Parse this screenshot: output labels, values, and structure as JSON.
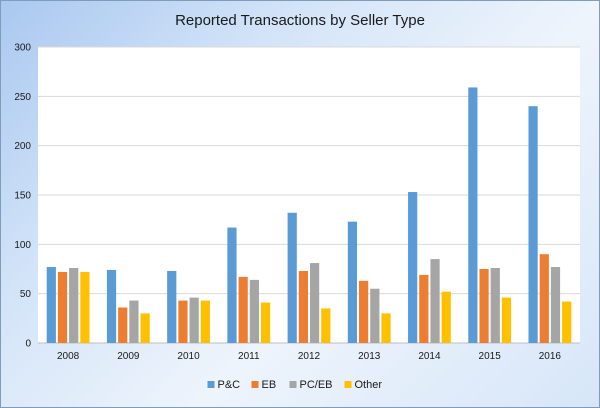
{
  "chart_data": {
    "type": "bar",
    "title": "Reported Transactions by Seller Type",
    "xlabel": "",
    "ylabel": "",
    "ylim": [
      0,
      300
    ],
    "yticks": [
      0,
      50,
      100,
      150,
      200,
      250,
      300
    ],
    "grid": true,
    "legend_position": "bottom",
    "categories": [
      "2008",
      "2009",
      "2010",
      "2011",
      "2012",
      "2013",
      "2014",
      "2015",
      "2016"
    ],
    "series": [
      {
        "name": "P&C",
        "color": "#5b9bd5",
        "values": [
          77,
          74,
          73,
          117,
          132,
          123,
          153,
          259,
          240
        ]
      },
      {
        "name": "EB",
        "color": "#ed7d31",
        "values": [
          72,
          36,
          43,
          67,
          73,
          63,
          69,
          75,
          90
        ]
      },
      {
        "name": "PC/EB",
        "color": "#a5a5a5",
        "values": [
          76,
          43,
          46,
          64,
          81,
          55,
          85,
          76,
          77
        ]
      },
      {
        "name": "Other",
        "color": "#ffc000",
        "values": [
          72,
          30,
          43,
          41,
          35,
          30,
          52,
          46,
          42
        ]
      }
    ]
  }
}
